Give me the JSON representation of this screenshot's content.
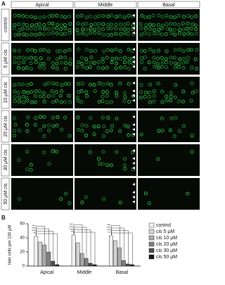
{
  "panel_labels": [
    "A",
    "B"
  ],
  "panel_a": {
    "columns": [
      "Apical",
      "Middle",
      "Basal"
    ],
    "rows": [
      "control",
      "5 μM cis",
      "10 μM cis",
      "20 μM cis",
      "30 μM cis",
      "50 μM cis"
    ]
  },
  "chart_data": {
    "type": "bar",
    "y_label": "Hair cells per 100 μM",
    "categories": [
      "Apical",
      "Middle",
      "Basal"
    ],
    "series": [
      {
        "name": "control",
        "color": "#f2f2f2",
        "values": [
          42,
          44,
          43
        ]
      },
      {
        "name": "cis 5 μM",
        "color": "#d4d4d4",
        "values": [
          34,
          33,
          36
        ]
      },
      {
        "name": "cis 10 μM",
        "color": "#ababab",
        "values": [
          30,
          18,
          26
        ]
      },
      {
        "name": "cis 20 μM",
        "color": "#808080",
        "values": [
          20,
          11,
          8
        ]
      },
      {
        "name": "cis 30 μM",
        "color": "#4d4d4d",
        "values": [
          7,
          4,
          3
        ]
      },
      {
        "name": "cis 50 μM",
        "color": "#1a1a1a",
        "values": [
          2,
          2,
          2
        ]
      }
    ],
    "annotations": [
      [
        "***",
        "***",
        "***",
        "**"
      ],
      [
        "***",
        "***",
        "***",
        "**"
      ],
      [
        "***",
        "***",
        "***",
        "**"
      ]
    ],
    "ylim": [
      0,
      60
    ],
    "yticks": [
      0,
      20,
      40,
      60
    ]
  }
}
